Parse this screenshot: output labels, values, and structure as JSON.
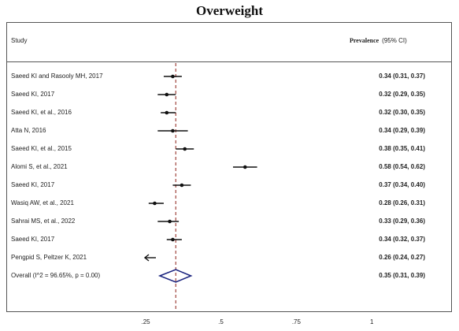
{
  "chart_data": {
    "type": "forest",
    "title": "Overweight",
    "header": {
      "study_label": "Study",
      "estimate_label": "Prevalence",
      "ci_label": "(95% CI)"
    },
    "studies": [
      {
        "name": "Saeed KI and Rasooly MH, 2017",
        "estimate": 0.34,
        "lower": 0.31,
        "upper": 0.37,
        "text": "0.34 (0.31, 0.37)"
      },
      {
        "name": "Saeed KI, 2017",
        "estimate": 0.32,
        "lower": 0.29,
        "upper": 0.35,
        "text": "0.32 (0.29, 0.35)"
      },
      {
        "name": "Saeed KI, et al., 2016",
        "estimate": 0.32,
        "lower": 0.3,
        "upper": 0.35,
        "text": "0.32 (0.30, 0.35)"
      },
      {
        "name": "Atta N, 2016",
        "estimate": 0.34,
        "lower": 0.29,
        "upper": 0.39,
        "text": "0.34 (0.29, 0.39)"
      },
      {
        "name": "Saeed KI, et al., 2015",
        "estimate": 0.38,
        "lower": 0.35,
        "upper": 0.41,
        "text": "0.38 (0.35, 0.41)"
      },
      {
        "name": "Alomi S, et al., 2021",
        "estimate": 0.58,
        "lower": 0.54,
        "upper": 0.62,
        "text": "0.58 (0.54, 0.62)"
      },
      {
        "name": "Saeed KI, 2017",
        "estimate": 0.37,
        "lower": 0.34,
        "upper": 0.4,
        "text": "0.37 (0.34, 0.40)"
      },
      {
        "name": "Wasiq AW, et al., 2021",
        "estimate": 0.28,
        "lower": 0.26,
        "upper": 0.31,
        "text": "0.28 (0.26, 0.31)"
      },
      {
        "name": "Sahrai MS, et al., 2022",
        "estimate": 0.33,
        "lower": 0.29,
        "upper": 0.36,
        "text": "0.33 (0.29, 0.36)"
      },
      {
        "name": "Saeed KI, 2017",
        "estimate": 0.34,
        "lower": 0.32,
        "upper": 0.37,
        "text": "0.34 (0.32, 0.37)"
      },
      {
        "name": "Pengpid S, Peltzer K, 2021",
        "estimate": 0.26,
        "lower": 0.24,
        "upper": 0.27,
        "text": "0.26 (0.24, 0.27)",
        "clipped_left": true
      }
    ],
    "overall": {
      "name": "Overall (I^2 = 96.65%, p = 0.00)",
      "estimate": 0.35,
      "lower": 0.31,
      "upper": 0.39,
      "text": "0.35 (0.31, 0.39)"
    },
    "x_ticks": [
      0.25,
      0.5,
      0.75,
      1
    ],
    "x_tick_labels": [
      ".25",
      ".5",
      ".75",
      "1"
    ],
    "xlim": [
      0.25,
      1
    ],
    "reference_line": 0.35,
    "colors": {
      "point": "#111111",
      "diamond": "#1a237e",
      "reference": "#a0443c"
    }
  }
}
